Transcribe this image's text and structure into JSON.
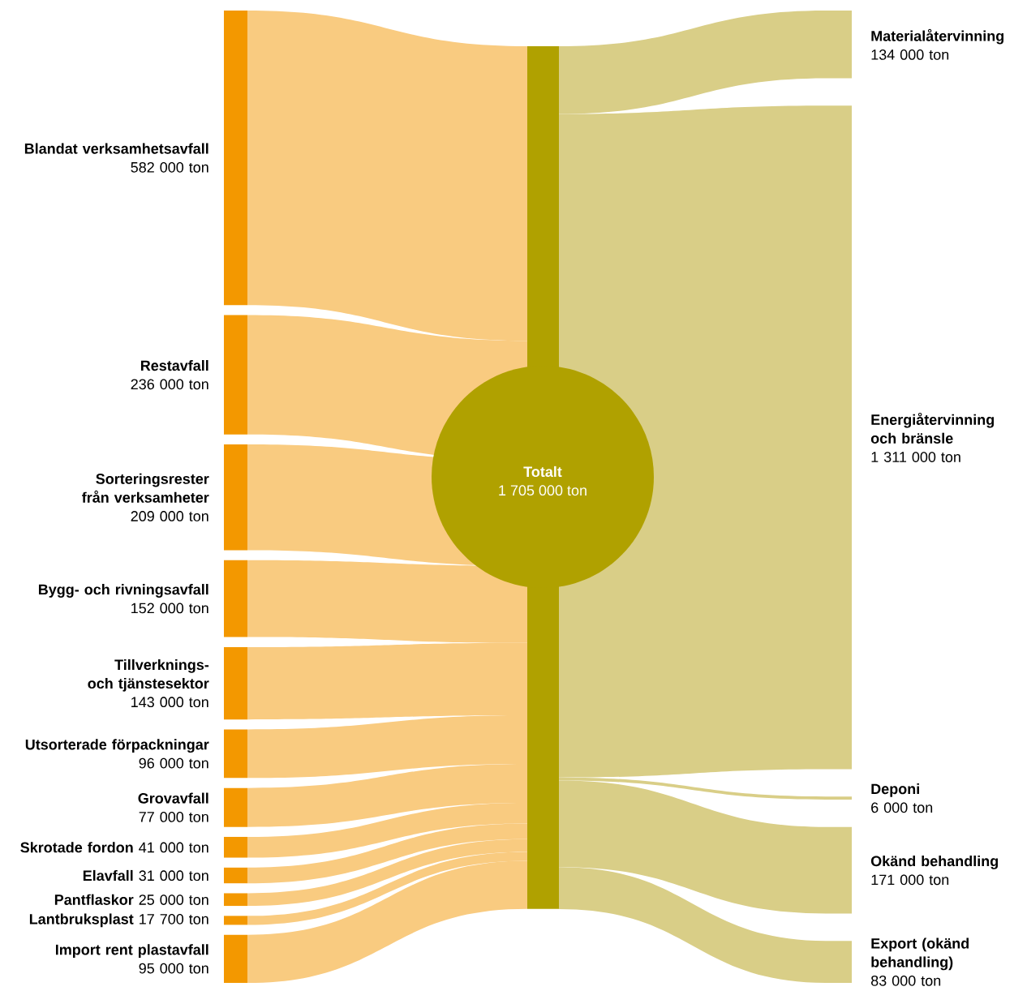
{
  "chart_data": {
    "type": "other",
    "categories": [
      "Blandat verksamhetsavfall",
      "Restavfall",
      "Sorteringsrester från verksamheter",
      "Bygg- och rivningsavfall",
      "Tillverknings- och tjänstesektor",
      "Utsorterade förpackningar",
      "Grovavfall",
      "Skrotade fordon",
      "Elavfall",
      "Pantflaskor",
      "Lantbruksplast",
      "Import rent plastavfall",
      "Materialåtervinning",
      "Energiåtervinning och bränsle",
      "Deponi",
      "Okänd behandling",
      "Export (okänd behandling)"
    ],
    "values": [
      582000,
      236000,
      209000,
      152000,
      143000,
      96000,
      77000,
      41000,
      31000,
      25000,
      17700,
      95000,
      134000,
      1311000,
      6000,
      171000,
      83000
    ],
    "value_labels": [
      "582 000 ton",
      "236 000 ton",
      "209 000 ton",
      "152 000 ton",
      "143 000 ton",
      "96 000 ton",
      "77 000 ton",
      "41 000 ton",
      "31 000 ton",
      "25 000 ton",
      "17 700 ton",
      "95 000 ton",
      "134 000 ton",
      "1 311 000 ton",
      "6 000 ton",
      "171 000 ton",
      "83 000 ton"
    ],
    "colors": [
      "#f39800",
      "#f39800",
      "#f39800",
      "#f39800",
      "#f39800",
      "#f39800",
      "#f39800",
      "#f39800",
      "#f39800",
      "#f39800",
      "#f39800",
      "#f39800",
      "#d9ce87",
      "#d9ce87",
      "#d9ce87",
      "#d9ce87",
      "#d9ce87"
    ],
    "color": "#b0a100",
    "annotations": [
      "Totalt",
      "1 705 000 ton"
    ]
  }
}
